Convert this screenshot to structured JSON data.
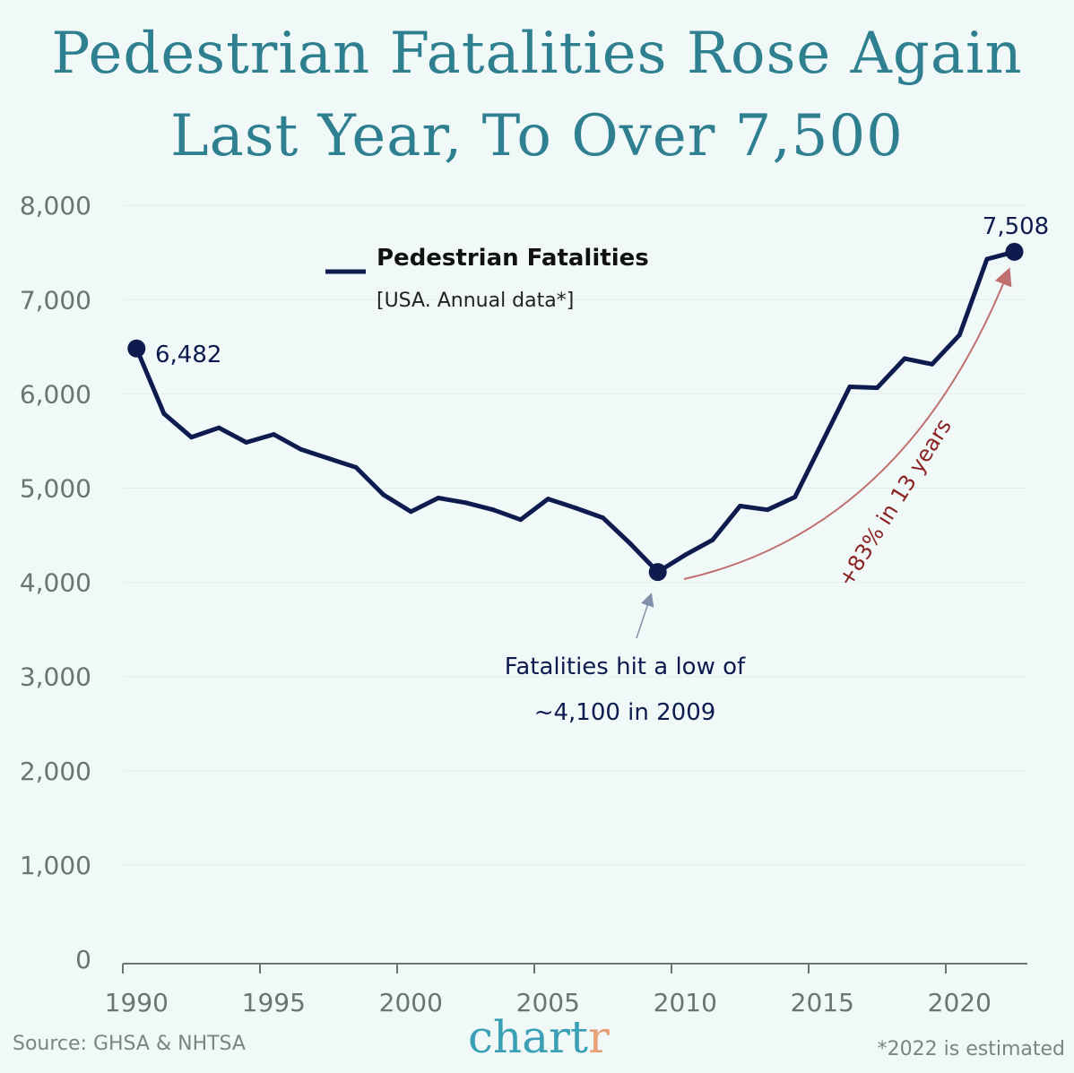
{
  "title_line1": "Pedestrian Fatalities Rose Again",
  "title_line2": "Last Year, To Over 7,500",
  "source": "Source: GHSA & NHTSA",
  "footnote": "*2022 is estimated",
  "logo": {
    "main": "chart",
    "accent": "r"
  },
  "colors": {
    "background": "#f0f9f8",
    "title": "#2e7f8f",
    "line": "#0d1b4f",
    "arrow_up": "#c07070",
    "arrow_up_text": "#8b2323",
    "low_arrow": "#8090a8",
    "axis_text": "#6b7472"
  },
  "chart_data": {
    "type": "line",
    "title": "Pedestrian Fatalities Rose Again Last Year, To Over 7,500",
    "xlabel": "",
    "ylabel": "",
    "xlim": [
      1990,
      2023
    ],
    "ylim": [
      0,
      8000
    ],
    "grid": true,
    "legend_placement": "top-center",
    "x_ticks": [
      "1990",
      "1995",
      "2000",
      "2005",
      "2010",
      "2015",
      "2020"
    ],
    "y_ticks": [
      "0",
      "1,000",
      "2,000",
      "3,000",
      "4,000",
      "5,000",
      "6,000",
      "7,000",
      "8,000"
    ],
    "legend": {
      "name": "Pedestrian Fatalities",
      "subtitle": "[USA. Annual data*]"
    },
    "series": [
      {
        "name": "Pedestrian Fatalities",
        "x": [
          1990,
          1991,
          1992,
          1993,
          1994,
          1995,
          1996,
          1997,
          1998,
          1999,
          2000,
          2001,
          2002,
          2003,
          2004,
          2005,
          2006,
          2007,
          2008,
          2009,
          2010,
          2011,
          2012,
          2013,
          2014,
          2015,
          2016,
          2017,
          2018,
          2019,
          2020,
          2021,
          2022
        ],
        "y": [
          6482,
          5790,
          5540,
          5640,
          5485,
          5570,
          5410,
          5315,
          5220,
          4930,
          4750,
          4895,
          4845,
          4770,
          4665,
          4885,
          4790,
          4685,
          4410,
          4109,
          4290,
          4450,
          4810,
          4770,
          4905,
          5490,
          6075,
          6065,
          6375,
          6315,
          6625,
          7430,
          7508
        ]
      }
    ],
    "annotations": {
      "start_label": "6,482",
      "end_label": "7,508",
      "low_text_1": "Fatalities hit a low of",
      "low_text_2": "~4,100 in 2009",
      "growth_text": "+83% in 13 years"
    }
  }
}
